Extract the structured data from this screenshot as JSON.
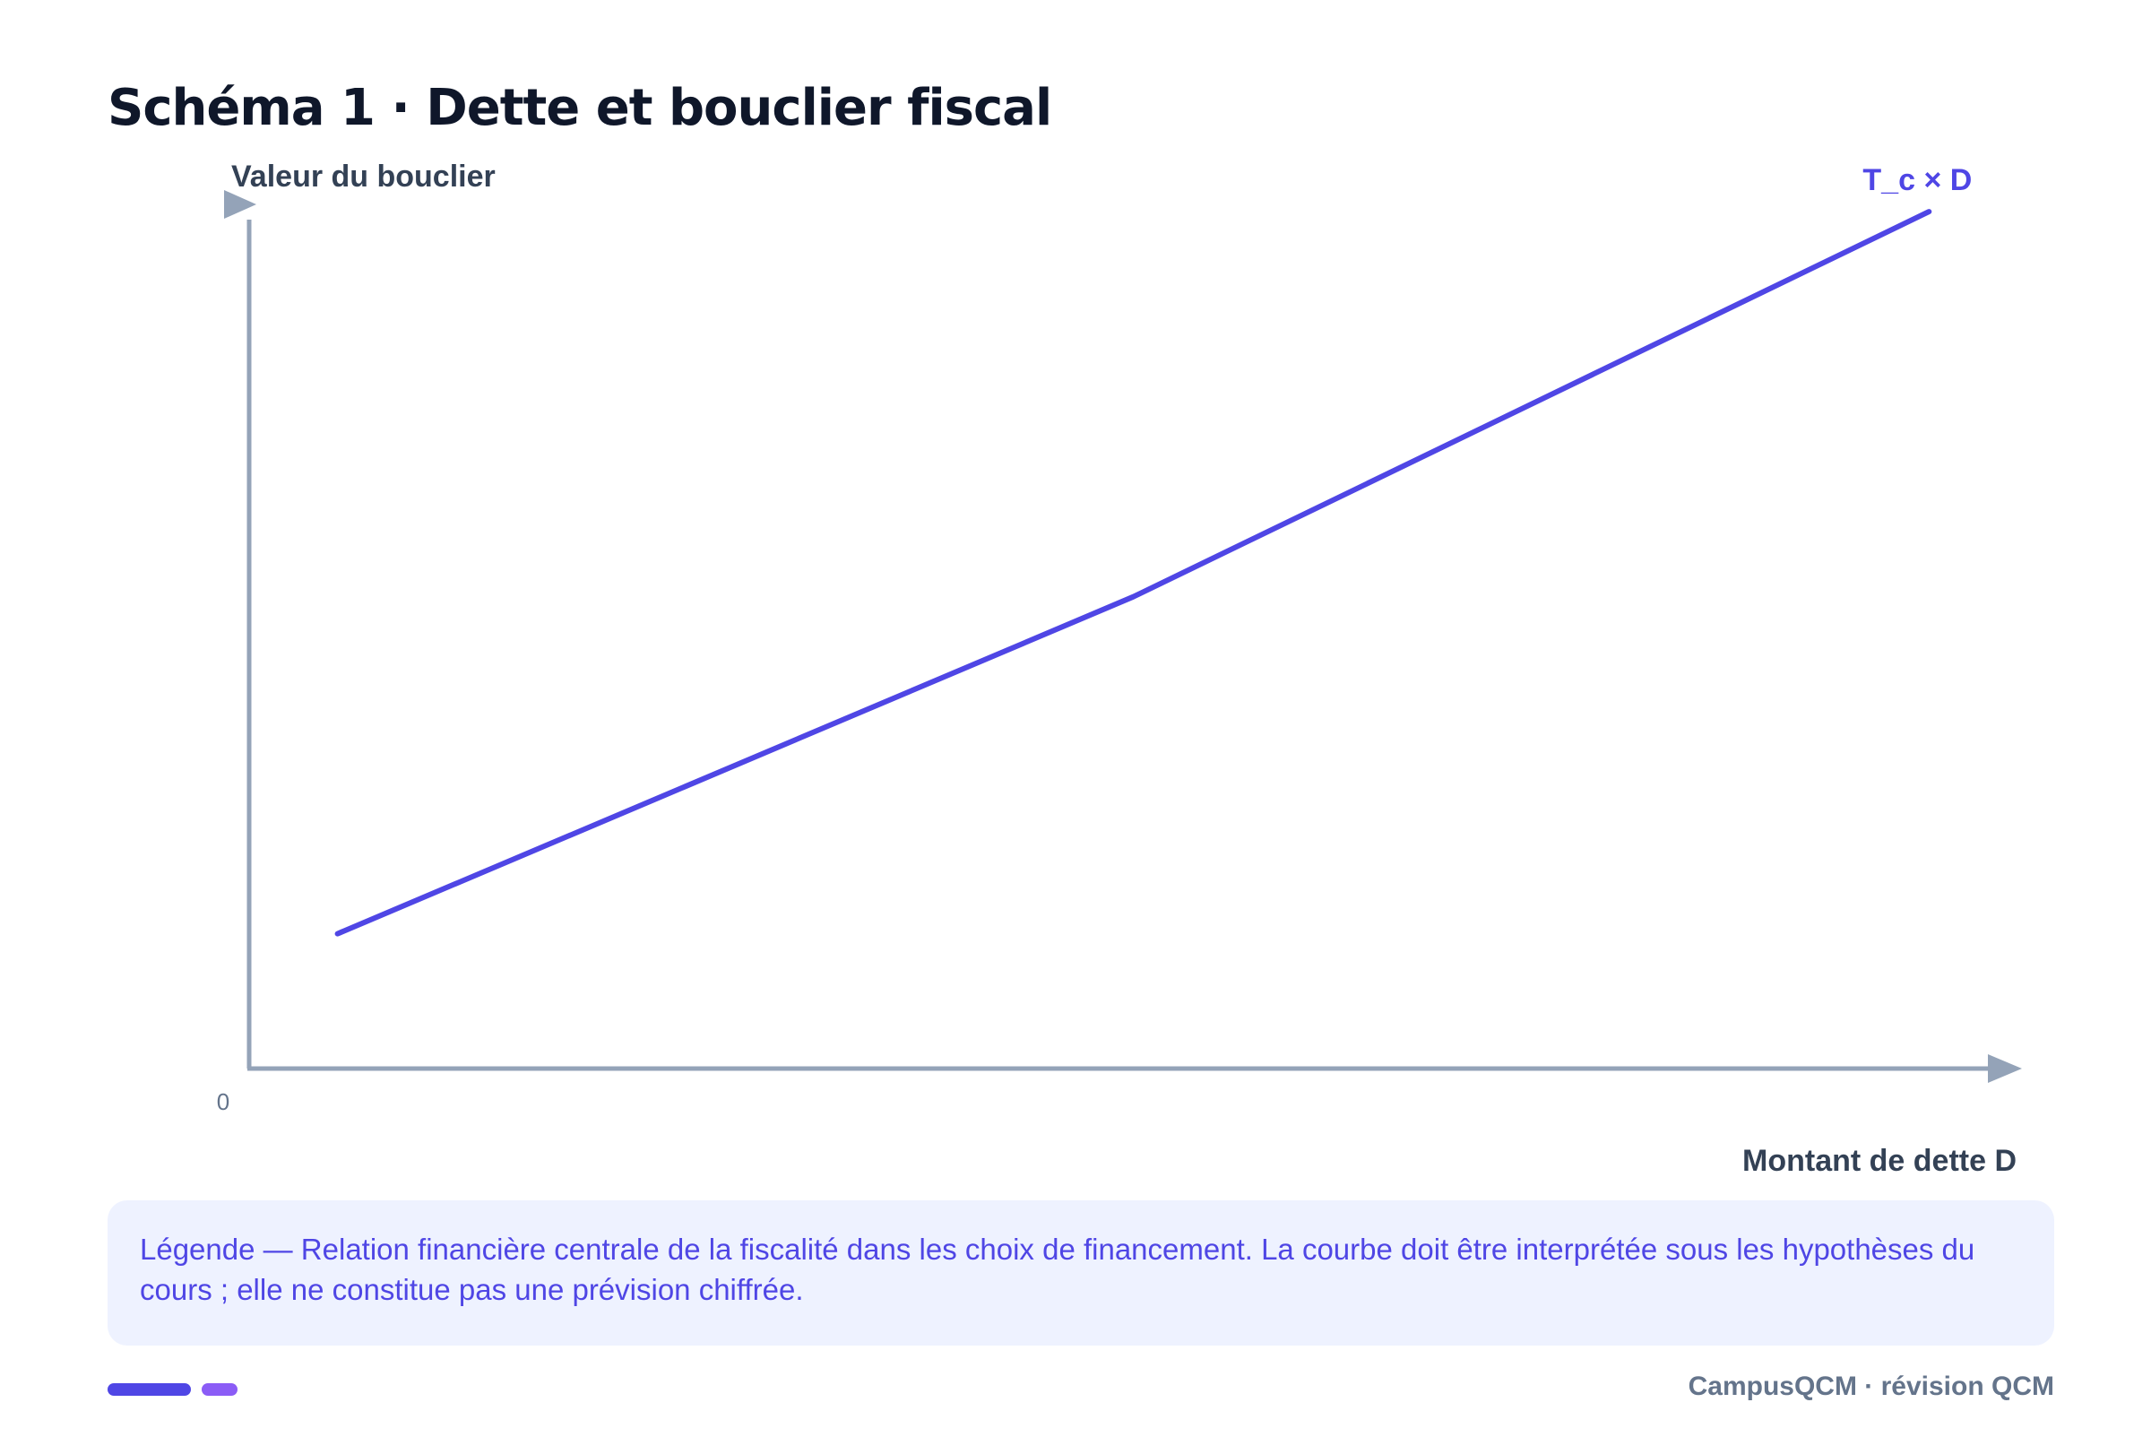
{
  "page": {
    "title": "Schéma 1 · Dette et bouclier fiscal"
  },
  "chart_data": {
    "type": "line",
    "title": "Schéma 1 · Dette et bouclier fiscal",
    "ylabel": "Valeur du bouclier",
    "xlabel": "Montant de dette D",
    "origin_label": "0",
    "axis_ticks": false,
    "grid": false,
    "xlim": [
      0,
      100
    ],
    "ylim": [
      0,
      100
    ],
    "series": [
      {
        "name": "T_c × D",
        "color": "#4f46e5",
        "x": [
          5,
          50,
          95
        ],
        "y": [
          14,
          49,
          89
        ]
      }
    ]
  },
  "legend": {
    "text": "Légende — Relation financière centrale de la fiscalité dans les choix de financement. La courbe doit être interprétée sous les hypothèses du cours ; elle ne constitue pas une prévision chiffrée."
  },
  "footer": {
    "brand": "CampusQCM · révision QCM",
    "accent_colors": [
      "#4f46e5",
      "#8b5cf6"
    ]
  },
  "colors": {
    "title": "#0f172a",
    "axis": "#94a3b8",
    "axis_label": "#334155",
    "series": "#4f46e5",
    "legend_background": "#eef2ff",
    "legend_text": "#4f46e5",
    "footer_text": "#64748b"
  }
}
